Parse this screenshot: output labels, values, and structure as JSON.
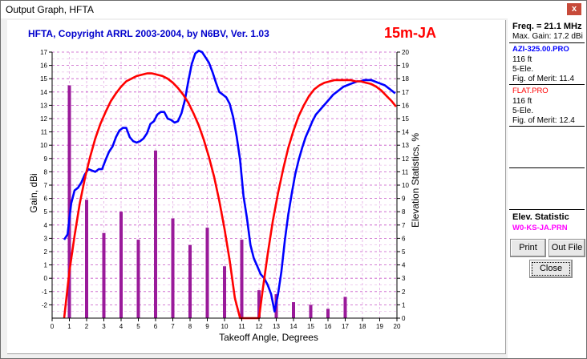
{
  "window": {
    "title": "Output Graph, HFTA",
    "close_glyph": "x"
  },
  "chart_header": {
    "title": "HFTA, Copyright ARRL 2003-2004, by N6BV, Ver. 1.03",
    "band": "15m-JA"
  },
  "side_panel": {
    "freq": "Freq. = 21.1 MHz",
    "max_gain": "Max. Gain: 17.2 dBi",
    "file1": {
      "name": "AZI-325.00.PRO",
      "height": "116 ft",
      "elements": "5-Ele.",
      "merit": "Fig. of Merit:  11.4"
    },
    "file2": {
      "name": "FLAT.PRO",
      "height": "116 ft",
      "elements": "5-Ele.",
      "merit": "Fig. of Merit:  12.4"
    },
    "elev_title": "Elev. Statistic",
    "elev_file": "W0-KS-JA.PRN"
  },
  "buttons": {
    "print": "Print",
    "out_file": "Out File",
    "close": "Close"
  },
  "colors": {
    "series1": "#0000ff",
    "series2": "#ff0000",
    "bars": "#9a1a9a",
    "grid": "#c040c0",
    "title": "#0000cc"
  },
  "chart_data": {
    "type": "line",
    "xlabel": "Takeoff Angle, Degrees",
    "ylabel": "Gain, dBi",
    "y2label": "Elevation Statistics, %",
    "xlim": [
      0,
      20
    ],
    "ylim": [
      -3,
      17
    ],
    "y2lim": [
      0,
      20
    ],
    "xticks": [
      "0",
      "1",
      "2",
      "3",
      "4",
      "5",
      "6",
      "7",
      "8",
      "9",
      "10",
      "11",
      "12",
      "13",
      "14",
      "15",
      "16",
      "17",
      "18",
      "19",
      "20"
    ],
    "yticks": [
      "-2",
      "-1",
      "0",
      "1",
      "2",
      "3",
      "4",
      "5",
      "6",
      "7",
      "8",
      "9",
      "10",
      "11",
      "12",
      "13",
      "14",
      "15",
      "16",
      "17"
    ],
    "y2ticks": [
      "0",
      "1",
      "2",
      "3",
      "4",
      "5",
      "6",
      "7",
      "8",
      "9",
      "10",
      "11",
      "12",
      "13",
      "14",
      "15",
      "16",
      "17",
      "18",
      "19",
      "20"
    ],
    "grid": "on",
    "series": [
      {
        "name": "AZI-325.00.PRO",
        "color": "#0000ff",
        "x": [
          0.7,
          0.9,
          1.1,
          1.3,
          1.5,
          1.7,
          1.9,
          2.1,
          2.3,
          2.5,
          2.7,
          2.9,
          3.1,
          3.3,
          3.5,
          3.7,
          3.9,
          4.1,
          4.3,
          4.5,
          4.7,
          4.9,
          5.1,
          5.3,
          5.5,
          5.7,
          5.9,
          6.1,
          6.3,
          6.5,
          6.7,
          6.9,
          7.1,
          7.3,
          7.5,
          7.7,
          7.9,
          8.1,
          8.3,
          8.5,
          8.7,
          8.9,
          9.1,
          9.3,
          9.5,
          9.7,
          9.9,
          10.1,
          10.3,
          10.5,
          10.7,
          10.9,
          11.1,
          11.3,
          11.5,
          11.7,
          11.9,
          12.1,
          12.3,
          12.5,
          12.7,
          12.9,
          13.1,
          13.3,
          13.5,
          13.7,
          13.9,
          14.1,
          14.3,
          14.5,
          14.7,
          14.9,
          15.1,
          15.3,
          15.5,
          15.7,
          15.9,
          16.1,
          16.3,
          16.5,
          16.7,
          16.9,
          17.1,
          17.3,
          17.5,
          17.7,
          17.9,
          18.1,
          18.3,
          18.5,
          18.7,
          18.9,
          19.1,
          19.3,
          19.5,
          19.7,
          19.9
        ],
        "y": [
          2.9,
          3.3,
          5.6,
          6.6,
          6.8,
          7.2,
          7.8,
          8.2,
          8.1,
          8.0,
          8.2,
          8.2,
          8.9,
          9.5,
          9.9,
          10.6,
          11.1,
          11.3,
          11.3,
          10.6,
          10.3,
          10.2,
          10.3,
          10.5,
          10.9,
          11.6,
          11.8,
          12.3,
          12.5,
          12.5,
          12.0,
          11.9,
          11.7,
          11.8,
          12.4,
          13.4,
          14.8,
          16.1,
          16.9,
          17.1,
          17.0,
          16.6,
          16.2,
          15.5,
          14.7,
          14.0,
          13.8,
          13.6,
          13.1,
          12.1,
          10.7,
          8.9,
          6.2,
          4.5,
          2.5,
          1.5,
          0.9,
          0.3,
          0.0,
          -0.5,
          -1.2,
          -2.5,
          -1.2,
          0.5,
          2.9,
          4.8,
          6.4,
          7.8,
          8.9,
          9.8,
          10.6,
          11.2,
          11.8,
          12.3,
          12.6,
          12.9,
          13.2,
          13.5,
          13.8,
          14.0,
          14.2,
          14.4,
          14.5,
          14.6,
          14.7,
          14.8,
          14.8,
          14.9,
          14.9,
          14.9,
          14.8,
          14.7,
          14.6,
          14.5,
          14.3,
          14.1,
          13.9
        ]
      },
      {
        "name": "FLAT.PRO",
        "color": "#ff0000",
        "x": [
          0.7,
          1.0,
          1.3,
          1.6,
          1.9,
          2.2,
          2.5,
          2.8,
          3.1,
          3.4,
          3.7,
          4.0,
          4.3,
          4.6,
          4.9,
          5.2,
          5.5,
          5.8,
          6.1,
          6.4,
          6.7,
          7.0,
          7.3,
          7.6,
          7.9,
          8.2,
          8.5,
          8.8,
          9.1,
          9.4,
          9.7,
          10.0,
          10.3,
          10.6,
          10.9,
          11.0,
          12.0,
          12.2,
          12.5,
          12.8,
          13.1,
          13.4,
          13.7,
          14.0,
          14.3,
          14.6,
          14.9,
          15.2,
          15.5,
          15.8,
          16.1,
          16.4,
          16.7,
          17.0,
          17.3,
          17.6,
          17.9,
          18.2,
          18.5,
          18.8,
          19.1,
          19.4,
          19.7,
          19.95
        ],
        "y": [
          -3.0,
          0.5,
          3.2,
          5.6,
          7.5,
          9.1,
          10.5,
          11.6,
          12.5,
          13.3,
          13.9,
          14.4,
          14.8,
          15.0,
          15.2,
          15.3,
          15.4,
          15.4,
          15.3,
          15.2,
          15.0,
          14.7,
          14.3,
          13.8,
          13.2,
          12.4,
          11.5,
          10.4,
          9.1,
          7.6,
          5.8,
          3.7,
          1.3,
          -1.5,
          -3.0,
          -3.0,
          -3.0,
          -1.0,
          1.8,
          4.3,
          6.4,
          8.2,
          9.8,
          11.1,
          12.2,
          13.0,
          13.7,
          14.2,
          14.5,
          14.7,
          14.8,
          14.9,
          14.9,
          14.9,
          14.9,
          14.8,
          14.8,
          14.7,
          14.6,
          14.4,
          14.1,
          13.7,
          13.3,
          12.9
        ]
      }
    ],
    "bars": {
      "name": "W0-KS-JA.PRN",
      "x": [
        1,
        2,
        3,
        4,
        5,
        6,
        7,
        8,
        9,
        10,
        11,
        12,
        13,
        14,
        15,
        16,
        17
      ],
      "values": [
        17.5,
        8.9,
        6.4,
        8.0,
        5.9,
        12.6,
        7.5,
        5.5,
        6.8,
        3.9,
        5.9,
        2.1,
        1.8,
        1.2,
        1.0,
        0.7,
        1.6
      ]
    }
  }
}
